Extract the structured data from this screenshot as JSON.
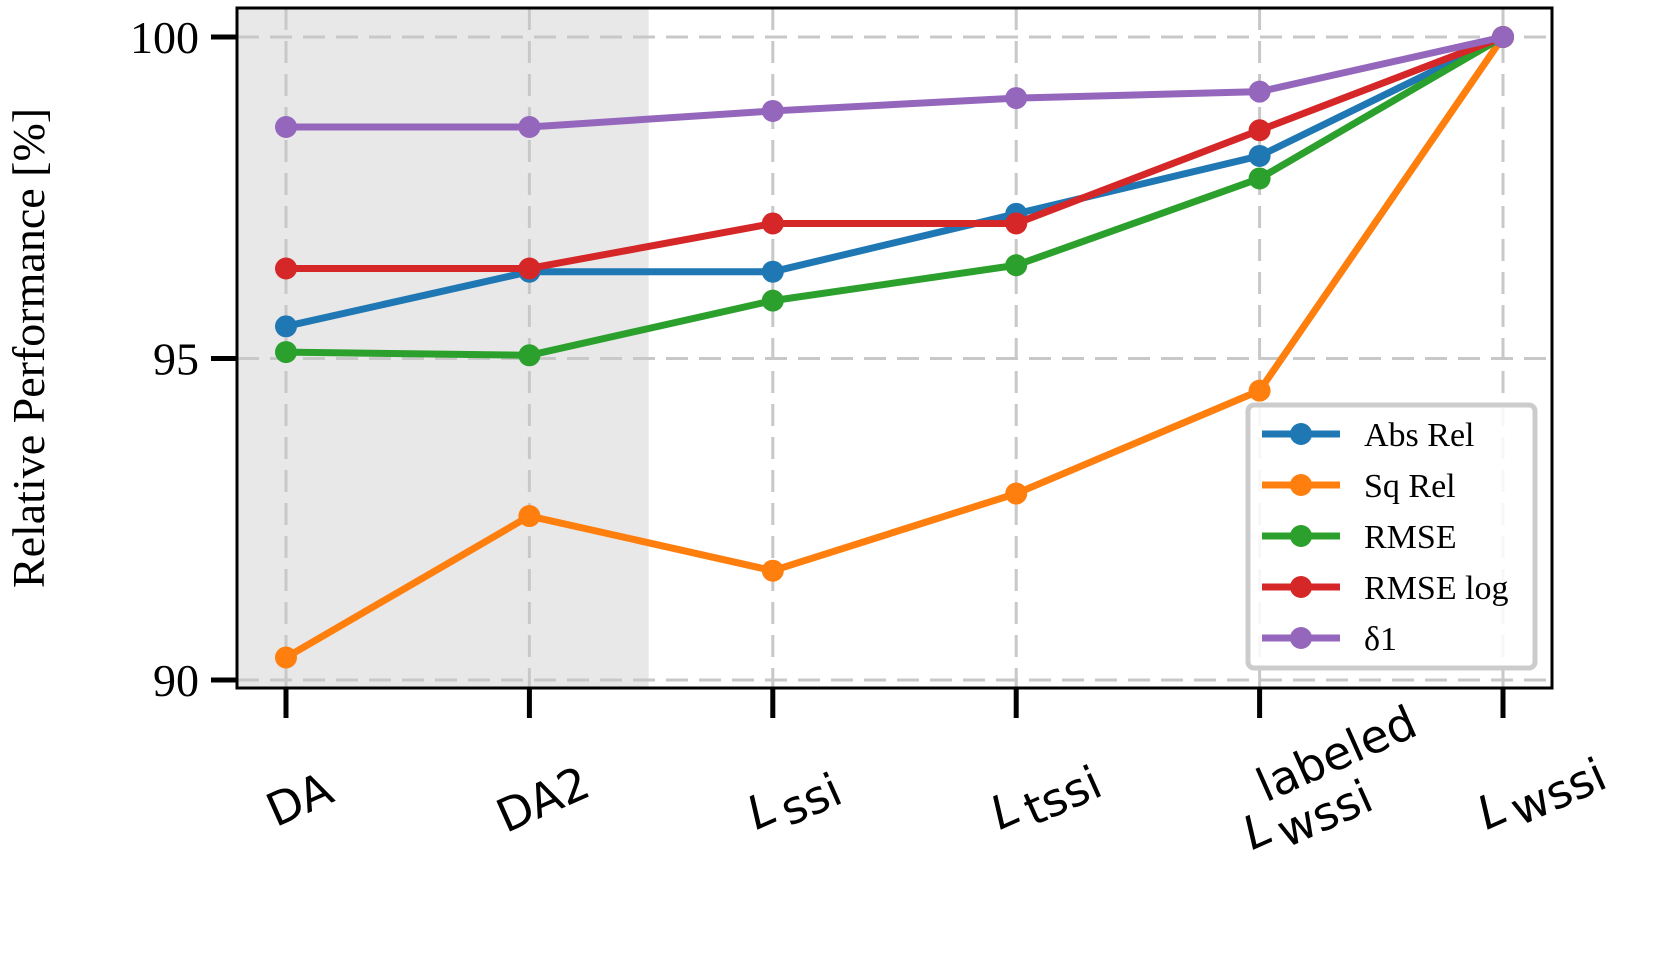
{
  "chart_data": {
    "type": "line",
    "title": "",
    "xlabel": "",
    "ylabel": "Relative Performance [%]",
    "ylim": [
      90,
      100.5
    ],
    "yticks": [
      90,
      95,
      100
    ],
    "grid": true,
    "legend_position": "lower-right",
    "categories": [
      {
        "main": "DA",
        "sub": "",
        "sup": "",
        "italic": false
      },
      {
        "main": "DA2",
        "sub": "",
        "sup": "",
        "italic": false
      },
      {
        "main": "L",
        "sub": "ssi",
        "sup": "",
        "italic": true
      },
      {
        "main": "L",
        "sub": "tssi",
        "sup": "",
        "italic": true
      },
      {
        "main": "L",
        "sub": "wssi",
        "sup": "labeled",
        "italic": true
      },
      {
        "main": "L",
        "sub": "wssi",
        "sup": "",
        "italic": true
      }
    ],
    "shaded_categories": [
      0,
      1
    ],
    "shade_color": "#e8e8e8",
    "series": [
      {
        "name": "Abs Rel",
        "color": "#1f77b4",
        "values": [
          95.5,
          96.35,
          96.35,
          97.25,
          98.15,
          100.0
        ]
      },
      {
        "name": "Sq Rel",
        "color": "#ff7f0e",
        "values": [
          90.35,
          92.55,
          91.7,
          92.9,
          94.5,
          100.0
        ]
      },
      {
        "name": "RMSE",
        "color": "#2ca02c",
        "values": [
          95.1,
          95.05,
          95.9,
          96.45,
          97.8,
          100.0
        ]
      },
      {
        "name": "RMSE log",
        "color": "#d62728",
        "values": [
          96.4,
          96.4,
          97.1,
          97.1,
          98.55,
          100.0
        ]
      },
      {
        "name": "δ1",
        "color": "#9467bd",
        "values": [
          98.6,
          98.6,
          98.85,
          99.05,
          99.15,
          100.0
        ]
      }
    ]
  }
}
